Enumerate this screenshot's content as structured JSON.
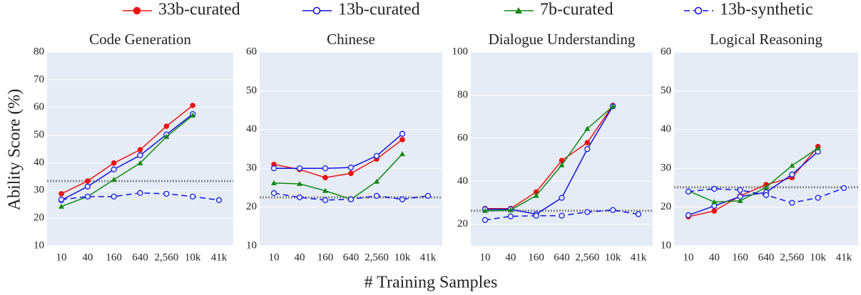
{
  "chart_data": [
    {
      "type": "line",
      "title": "Code Generation",
      "ylabel": "Ability Score (%)",
      "xlabel": "# Training Samples",
      "categories": [
        "10",
        "40",
        "160",
        "640",
        "2,560",
        "10k",
        "41k"
      ],
      "ylim": [
        10,
        80
      ],
      "yticks": [
        10,
        20,
        30,
        40,
        50,
        60,
        70,
        80
      ],
      "grid": true,
      "hline": 33.4,
      "series": [
        {
          "name": "33b-curated",
          "color": "#ee1111",
          "marker": "circle",
          "dash": false,
          "values": [
            28.8,
            33.4,
            39.9,
            44.7,
            53.2,
            60.7,
            null
          ]
        },
        {
          "name": "13b-curated",
          "color": "#1111dd",
          "marker": "open-circle",
          "dash": false,
          "values": [
            26.5,
            31.4,
            37.6,
            42.7,
            50.2,
            57.6,
            null
          ]
        },
        {
          "name": "7b-curated",
          "color": "#118811",
          "marker": "triangle",
          "dash": false,
          "values": [
            24.2,
            27.8,
            33.9,
            39.9,
            49.4,
            57.1,
            null
          ]
        },
        {
          "name": "13b-synthetic",
          "color": "#1111dd",
          "marker": "open-circle",
          "dash": true,
          "values": [
            26.7,
            27.8,
            27.8,
            29.1,
            28.8,
            27.8,
            26.5
          ]
        }
      ]
    },
    {
      "type": "line",
      "title": "Chinese",
      "categories": [
        "10",
        "40",
        "160",
        "640",
        "2,560",
        "10k",
        "41k"
      ],
      "ylim": [
        10,
        60
      ],
      "yticks": [
        10,
        20,
        30,
        40,
        50,
        60
      ],
      "grid": true,
      "hline": 22.5,
      "series": [
        {
          "name": "33b-curated",
          "color": "#ee1111",
          "marker": "circle",
          "dash": false,
          "values": [
            31.0,
            29.7,
            27.6,
            28.7,
            32.4,
            37.4,
            null
          ]
        },
        {
          "name": "13b-curated",
          "color": "#1111dd",
          "marker": "open-circle",
          "dash": false,
          "values": [
            30.0,
            30.0,
            30.0,
            30.2,
            33.2,
            38.9,
            null
          ]
        },
        {
          "name": "7b-curated",
          "color": "#118811",
          "marker": "triangle",
          "dash": false,
          "values": [
            26.2,
            26.0,
            24.2,
            22.0,
            26.6,
            33.7,
            null
          ]
        },
        {
          "name": "13b-synthetic",
          "color": "#1111dd",
          "marker": "open-circle",
          "dash": true,
          "values": [
            23.6,
            22.5,
            21.8,
            22.0,
            22.9,
            22.0,
            22.9
          ]
        }
      ]
    },
    {
      "type": "line",
      "title": "Dialogue Understanding",
      "categories": [
        "10",
        "40",
        "160",
        "640",
        "2,560",
        "10k",
        "41k"
      ],
      "ylim": [
        10,
        100
      ],
      "yticks": [
        20,
        40,
        60,
        80,
        100
      ],
      "grid": true,
      "hline": 26.3,
      "series": [
        {
          "name": "33b-curated",
          "color": "#ee1111",
          "marker": "circle",
          "dash": false,
          "values": [
            27.3,
            27.3,
            35.0,
            49.6,
            57.9,
            75.2,
            null
          ]
        },
        {
          "name": "13b-curated",
          "color": "#1111dd",
          "marker": "open-circle",
          "dash": false,
          "values": [
            27.0,
            27.0,
            24.7,
            32.3,
            54.9,
            74.8,
            null
          ]
        },
        {
          "name": "7b-curated",
          "color": "#118811",
          "marker": "triangle",
          "dash": false,
          "values": [
            26.3,
            26.6,
            33.3,
            47.5,
            64.4,
            74.8,
            null
          ]
        },
        {
          "name": "13b-synthetic",
          "color": "#1111dd",
          "marker": "open-circle",
          "dash": true,
          "values": [
            22.0,
            23.7,
            24.0,
            24.0,
            25.7,
            26.6,
            24.7
          ]
        }
      ]
    },
    {
      "type": "line",
      "title": "Logical Reasoning",
      "categories": [
        "10",
        "40",
        "160",
        "640",
        "2,560",
        "10k",
        "41k"
      ],
      "ylim": [
        10,
        60
      ],
      "yticks": [
        10,
        20,
        30,
        40,
        50,
        60
      ],
      "grid": true,
      "hline": 25.1,
      "series": [
        {
          "name": "33b-curated",
          "color": "#ee1111",
          "marker": "circle",
          "dash": false,
          "values": [
            17.5,
            19.0,
            22.9,
            25.8,
            27.6,
            35.6,
            null
          ]
        },
        {
          "name": "13b-curated",
          "color": "#1111dd",
          "marker": "open-circle",
          "dash": false,
          "values": [
            17.9,
            20.3,
            22.7,
            23.8,
            28.4,
            34.3,
            null
          ]
        },
        {
          "name": "7b-curated",
          "color": "#118811",
          "marker": "triangle",
          "dash": false,
          "values": [
            24.2,
            21.3,
            21.6,
            25.1,
            30.7,
            35.2,
            null
          ]
        },
        {
          "name": "13b-synthetic",
          "color": "#1111dd",
          "marker": "open-circle",
          "dash": true,
          "values": [
            24.0,
            24.7,
            24.4,
            23.1,
            21.1,
            22.4,
            24.9
          ]
        }
      ]
    }
  ]
}
